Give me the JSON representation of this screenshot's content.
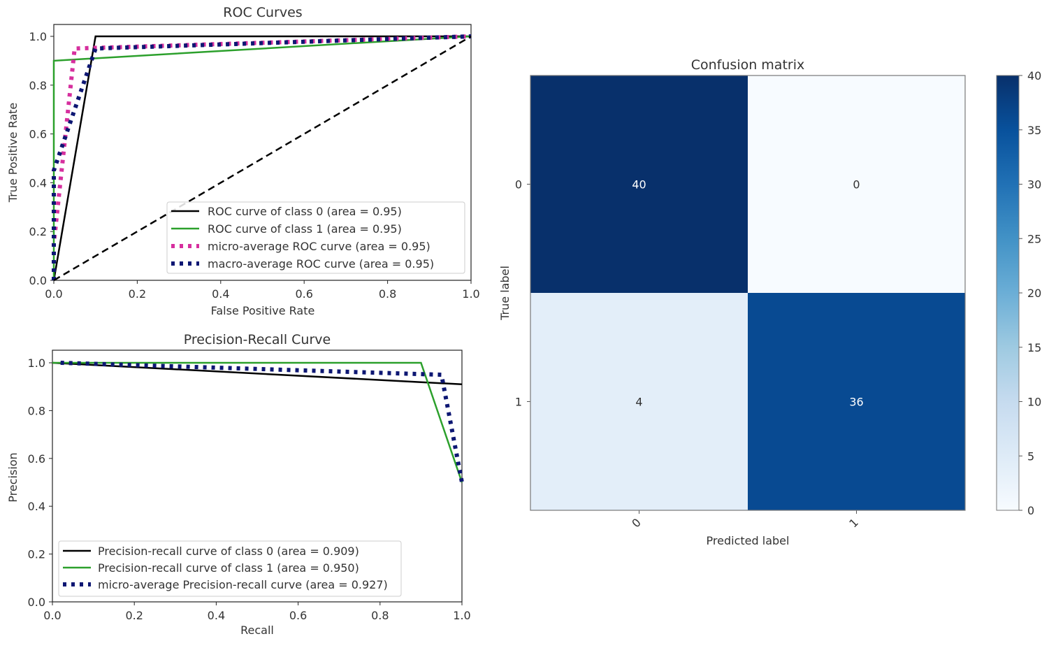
{
  "chart_data": [
    {
      "type": "line",
      "title": "ROC Curves",
      "xlabel": "False Positive Rate",
      "ylabel": "True Positive Rate",
      "xlim": [
        0,
        1
      ],
      "ylim": [
        0,
        1
      ],
      "xticks": [
        "0.0",
        "0.2",
        "0.4",
        "0.6",
        "0.8",
        "1.0"
      ],
      "yticks": [
        "0.0",
        "0.2",
        "0.4",
        "0.6",
        "0.8",
        "1.0"
      ],
      "grid": false,
      "legend_position": "bottom-right",
      "series": [
        {
          "name": "ROC curve of class 0 (area = 0.95)",
          "color": "#000000",
          "style": "solid",
          "x": [
            0,
            0.1,
            1
          ],
          "y": [
            0,
            1,
            1
          ]
        },
        {
          "name": "ROC curve of class 1 (area = 0.95)",
          "color": "#2ca02c",
          "style": "solid",
          "x": [
            0,
            0,
            1
          ],
          "y": [
            0,
            0.9,
            1
          ]
        },
        {
          "name": "micro-average ROC curve (area = 0.95)",
          "color": "#d62f9e",
          "style": "dotted",
          "x": [
            0,
            0,
            0.05,
            1
          ],
          "y": [
            0,
            0.15,
            0.95,
            1
          ]
        },
        {
          "name": "macro-average ROC curve (area = 0.95)",
          "color": "#0d1773",
          "style": "dotted",
          "x": [
            0,
            0,
            0.1,
            1
          ],
          "y": [
            0,
            0.45,
            0.95,
            1
          ]
        },
        {
          "name": "",
          "color": "#000000",
          "style": "dashed",
          "x": [
            0,
            1
          ],
          "y": [
            0,
            1
          ]
        }
      ]
    },
    {
      "type": "line",
      "title": "Precision-Recall Curve",
      "xlabel": "Recall",
      "ylabel": "Precision",
      "xlim": [
        0,
        1
      ],
      "ylim": [
        0,
        1
      ],
      "xticks": [
        "0.0",
        "0.2",
        "0.4",
        "0.6",
        "0.8",
        "1.0"
      ],
      "yticks": [
        "0.0",
        "0.2",
        "0.4",
        "0.6",
        "0.8",
        "1.0"
      ],
      "grid": false,
      "legend_position": "bottom-left",
      "series": [
        {
          "name": "Precision-recall curve of class 0 (area = 0.909)",
          "color": "#000000",
          "style": "solid",
          "x": [
            0,
            1
          ],
          "y": [
            1,
            0.91
          ]
        },
        {
          "name": "Precision-recall curve of class 1 (area = 0.950)",
          "color": "#2ca02c",
          "style": "solid",
          "x": [
            0,
            0.9,
            1
          ],
          "y": [
            1,
            1,
            0.5
          ]
        },
        {
          "name": "micro-average Precision-recall curve (area = 0.927)",
          "color": "#0d1773",
          "style": "dotted",
          "x": [
            0.02,
            0.95,
            1
          ],
          "y": [
            1,
            0.95,
            0.5
          ]
        }
      ]
    },
    {
      "type": "heatmap",
      "title": "Confusion matrix",
      "xlabel": "Predicted label",
      "ylabel": "True label",
      "xticks": [
        "0",
        "1"
      ],
      "yticks": [
        "0",
        "1"
      ],
      "values": [
        [
          40,
          0
        ],
        [
          4,
          36
        ]
      ],
      "cell_labels": [
        [
          "40",
          "0"
        ],
        [
          "4",
          "36"
        ]
      ],
      "colormap": "Blues",
      "colorbar": {
        "min": 0,
        "max": 40,
        "ticks": [
          "0",
          "5",
          "10",
          "15",
          "20",
          "25",
          "30",
          "35",
          "40"
        ]
      }
    }
  ]
}
